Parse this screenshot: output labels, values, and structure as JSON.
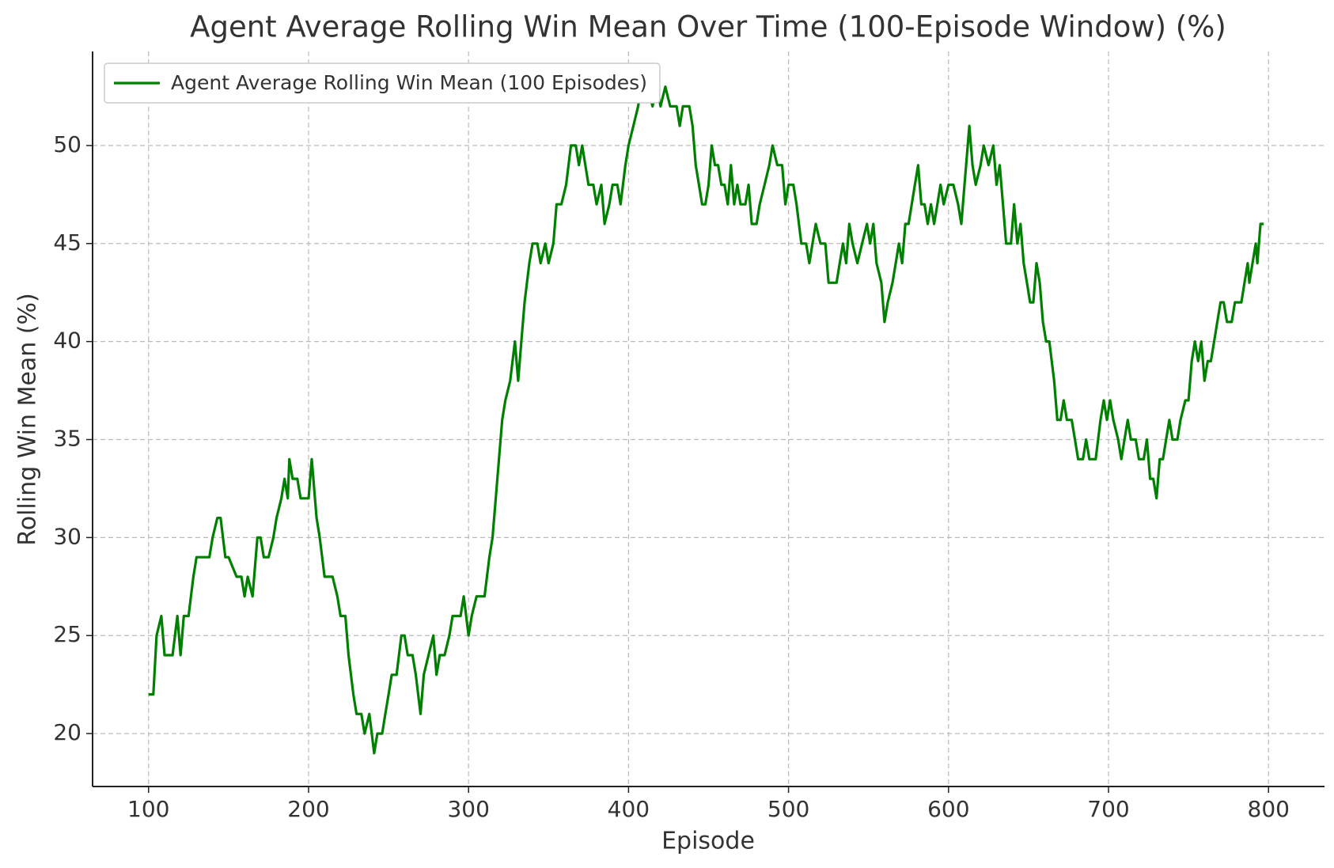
{
  "chart_data": {
    "type": "line",
    "title": "Agent Average Rolling Win Mean Over Time (100-Episode Window) (%)",
    "xlabel": "Episode",
    "ylabel": "Rolling Win Mean (%)",
    "x": [
      100,
      103,
      105,
      108,
      110,
      115,
      118,
      120,
      122,
      125,
      128,
      130,
      135,
      138,
      140,
      143,
      145,
      148,
      150,
      155,
      158,
      160,
      162,
      165,
      168,
      170,
      172,
      175,
      178,
      180,
      183,
      185,
      187,
      188,
      190,
      193,
      195,
      200,
      202,
      205,
      207,
      210,
      215,
      218,
      220,
      223,
      225,
      228,
      230,
      233,
      235,
      238,
      241,
      243,
      246,
      248,
      250,
      252,
      255,
      258,
      260,
      262,
      265,
      267,
      270,
      272,
      275,
      278,
      280,
      282,
      285,
      288,
      290,
      295,
      297,
      300,
      302,
      305,
      310,
      313,
      315,
      318,
      321,
      323,
      326,
      329,
      331,
      333,
      335,
      338,
      340,
      343,
      345,
      348,
      350,
      353,
      355,
      358,
      361,
      364,
      367,
      369,
      371,
      373,
      375,
      378,
      380,
      383,
      385,
      388,
      390,
      393,
      395,
      398,
      400,
      403,
      406,
      408,
      412,
      415,
      418,
      420,
      423,
      426,
      430,
      432,
      434,
      438,
      440,
      442,
      444,
      446,
      448,
      450,
      452,
      454,
      456,
      458,
      460,
      462,
      464,
      466,
      468,
      470,
      473,
      475,
      477,
      480,
      482,
      485,
      488,
      490,
      493,
      496,
      498,
      500,
      503,
      505,
      508,
      511,
      513,
      515,
      517,
      520,
      523,
      525,
      530,
      532,
      534,
      536,
      538,
      540,
      543,
      546,
      549,
      551,
      553,
      555,
      558,
      560,
      562,
      565,
      567,
      569,
      571,
      573,
      575,
      577,
      579,
      581,
      583,
      585,
      587,
      589,
      591,
      593,
      595,
      597,
      600,
      603,
      606,
      608,
      610,
      612,
      613,
      615,
      617,
      620,
      622,
      625,
      628,
      630,
      632,
      634,
      636,
      639,
      641,
      643,
      645,
      647,
      649,
      651,
      653,
      655,
      657,
      659,
      661,
      663,
      666,
      668,
      670,
      672,
      674,
      677,
      679,
      681,
      684,
      686,
      688,
      692,
      695,
      697,
      699,
      701,
      703,
      706,
      708,
      710,
      712,
      714,
      717,
      719,
      722,
      724,
      726,
      728,
      730,
      732,
      734,
      736,
      738,
      740,
      743,
      745,
      748,
      750,
      752,
      754,
      756,
      758,
      760,
      762,
      764,
      766,
      768,
      770,
      772,
      774,
      777,
      779,
      783,
      785,
      787,
      788,
      790,
      792,
      793,
      795,
      797
    ],
    "series": [
      {
        "name": "Agent Average Rolling Win Mean (100 Episodes)",
        "color": "#008000",
        "values": [
          22,
          22,
          25,
          26,
          24,
          24,
          26,
          24,
          26,
          26,
          28,
          29,
          29,
          29,
          30,
          31,
          31,
          29,
          29,
          28,
          28,
          27,
          28,
          27,
          30,
          30,
          29,
          29,
          30,
          31,
          32,
          33,
          32,
          34,
          33,
          33,
          32,
          32,
          34,
          31,
          30,
          28,
          28,
          27,
          26,
          26,
          24,
          22,
          21,
          21,
          20,
          21,
          19,
          20,
          20,
          21,
          22,
          23,
          23,
          25,
          25,
          24,
          24,
          23,
          21,
          23,
          24,
          25,
          23,
          24,
          24,
          25,
          26,
          26,
          27,
          25,
          26,
          27,
          27,
          29,
          30,
          33,
          36,
          37,
          38,
          40,
          38,
          40,
          42,
          44,
          45,
          45,
          44,
          45,
          44,
          45,
          47,
          47,
          48,
          50,
          50,
          49,
          50,
          49,
          48,
          48,
          47,
          48,
          46,
          47,
          48,
          48,
          47,
          49,
          50,
          51,
          52,
          53,
          53,
          52,
          53,
          52,
          53,
          52,
          52,
          51,
          52,
          52,
          51,
          49,
          48,
          47,
          47,
          48,
          50,
          49,
          49,
          48,
          48,
          47,
          49,
          47,
          48,
          47,
          47,
          48,
          46,
          46,
          47,
          48,
          49,
          50,
          49,
          49,
          47,
          48,
          48,
          47,
          45,
          45,
          44,
          45,
          46,
          45,
          45,
          43,
          43,
          44,
          45,
          44,
          46,
          45,
          44,
          45,
          46,
          45,
          46,
          44,
          43,
          41,
          42,
          43,
          44,
          45,
          44,
          46,
          46,
          47,
          48,
          49,
          47,
          47,
          46,
          47,
          46,
          47,
          48,
          47,
          48,
          48,
          47,
          46,
          48,
          50,
          51,
          49,
          48,
          49,
          50,
          49,
          50,
          48,
          49,
          47,
          45,
          45,
          47,
          45,
          46,
          44,
          43,
          42,
          42,
          44,
          43,
          41,
          40,
          40,
          38,
          36,
          36,
          37,
          36,
          36,
          35,
          34,
          34,
          35,
          34,
          34,
          36,
          37,
          36,
          37,
          36,
          35,
          34,
          35,
          36,
          35,
          35,
          34,
          34,
          35,
          33,
          33,
          32,
          34,
          34,
          35,
          36,
          35,
          35,
          36,
          37,
          37,
          39,
          40,
          39,
          40,
          38,
          39,
          39,
          40,
          41,
          42,
          42,
          41,
          41,
          42,
          42,
          43,
          44,
          43,
          44,
          45,
          44,
          46,
          46
        ]
      }
    ],
    "xlim": [
      65,
      835
    ],
    "ylim": [
      17.3,
      54.8
    ],
    "xticks": [
      100,
      200,
      300,
      400,
      500,
      600,
      700,
      800
    ],
    "yticks": [
      20,
      25,
      30,
      35,
      40,
      45,
      50
    ],
    "grid": true,
    "legend": "upper left"
  }
}
